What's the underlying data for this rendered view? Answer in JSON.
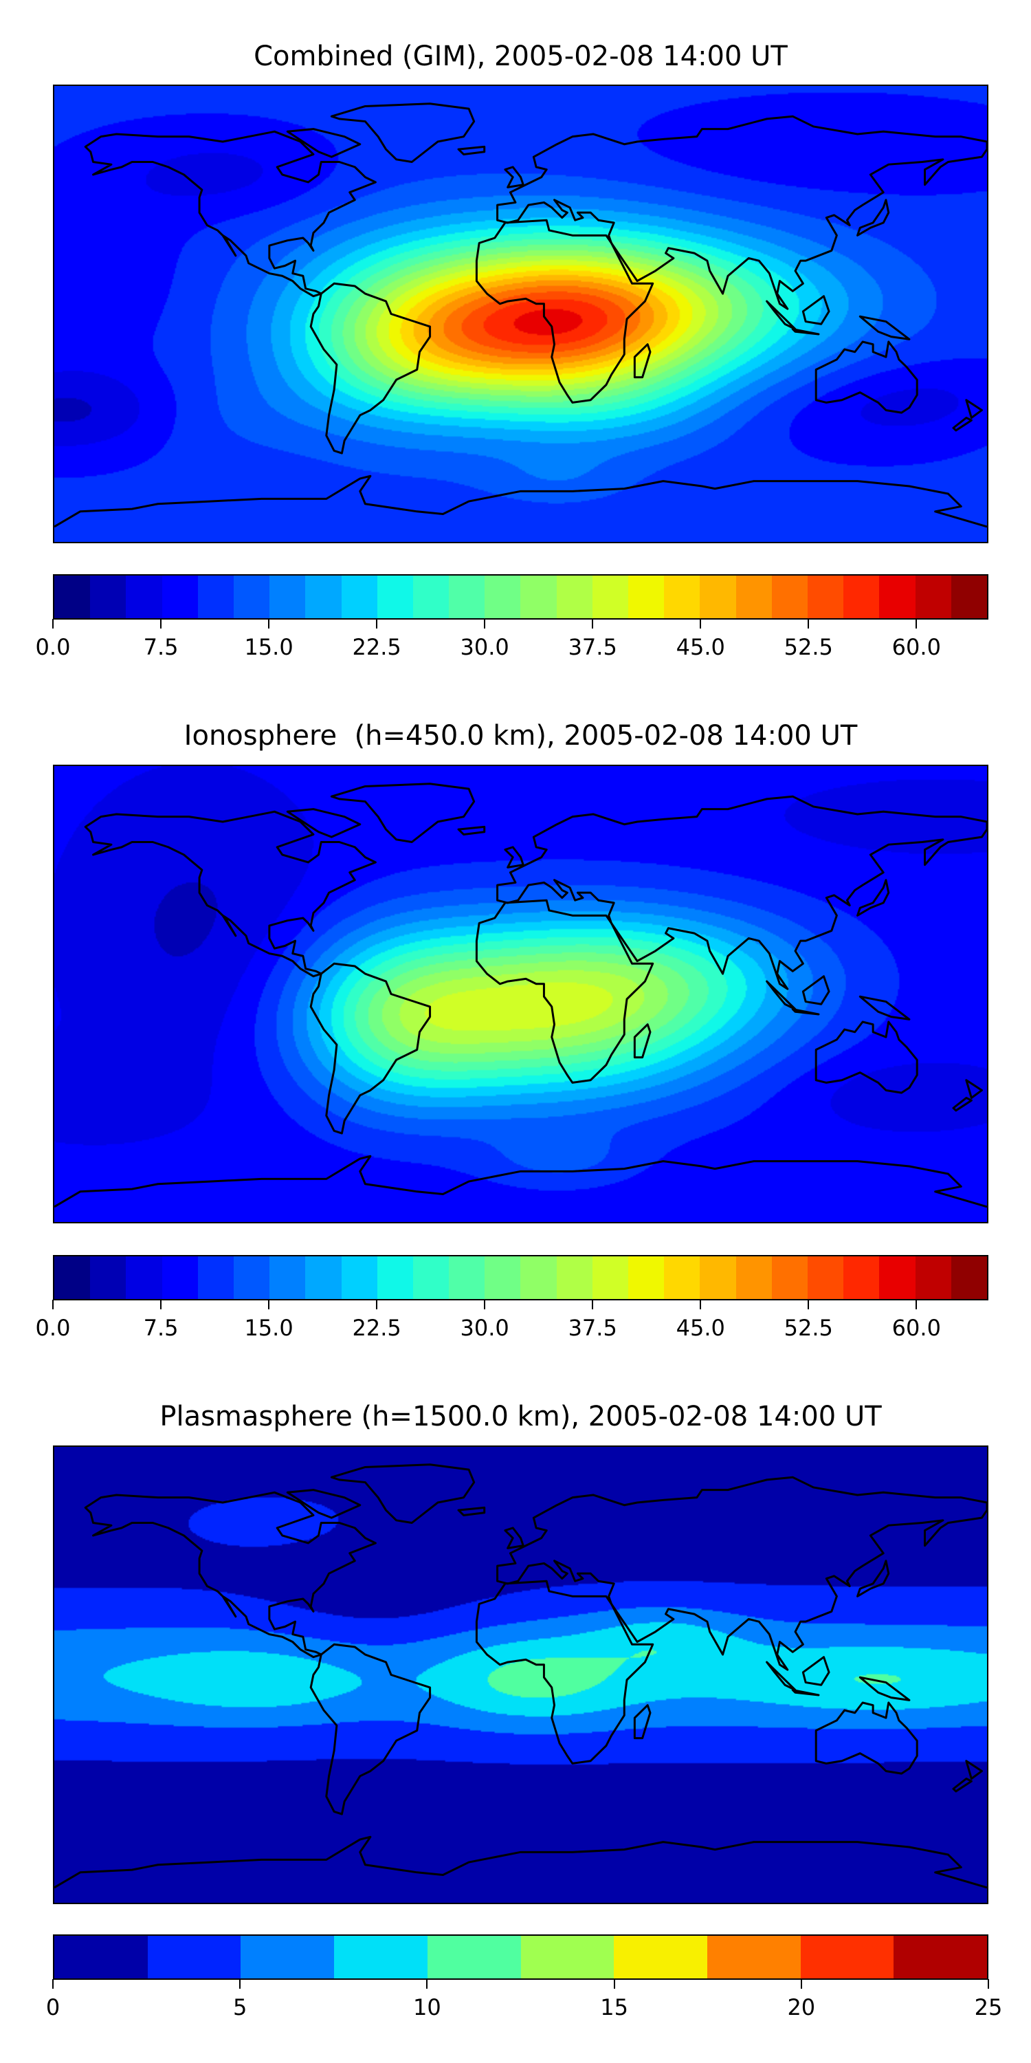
{
  "chart_data": [
    {
      "type": "heatmap",
      "subtype": "filled-contour world map (TEC)",
      "title": "Combined (GIM), 2005-02-08 14:00 UT",
      "colorbar": {
        "range": [
          0,
          65
        ],
        "levels_step": 2.5,
        "tick_labels": [
          "0.0",
          "7.5",
          "15.0",
          "22.5",
          "30.0",
          "37.5",
          "45.0",
          "52.5",
          "60.0"
        ],
        "tick_values": [
          0,
          7.5,
          15,
          22.5,
          30,
          37.5,
          45,
          52.5,
          60
        ],
        "colors": [
          "#000086",
          "#0000b4",
          "#0000e4",
          "#0000ff",
          "#0030ff",
          "#0058ff",
          "#0080ff",
          "#00a8ff",
          "#00d0ff",
          "#10f8e8",
          "#30ffc8",
          "#50ffa8",
          "#70ff86",
          "#90ff66",
          "#b0ff46",
          "#d0ff26",
          "#f0f800",
          "#ffd800",
          "#ffb800",
          "#ff9400",
          "#ff7000",
          "#ff4c00",
          "#ff2800",
          "#e80000",
          "#c00000",
          "#900000"
        ]
      },
      "estimated_peak": {
        "value": 50,
        "lon": 18,
        "lat": -4
      },
      "axes": "none (map extent lon -180..180, lat -90..90)"
    },
    {
      "type": "heatmap",
      "subtype": "filled-contour world map (TEC)",
      "title": "Ionosphere  (h=450.0 km), 2005-02-08 14:00 UT",
      "colorbar": {
        "range": [
          0,
          65
        ],
        "levels_step": 2.5,
        "tick_labels": [
          "0.0",
          "7.5",
          "15.0",
          "22.5",
          "30.0",
          "37.5",
          "45.0",
          "52.5",
          "60.0"
        ],
        "tick_values": [
          0,
          7.5,
          15,
          22.5,
          30,
          37.5,
          45,
          52.5,
          60
        ],
        "colors": [
          "#000086",
          "#0000b4",
          "#0000e4",
          "#0000ff",
          "#0030ff",
          "#0058ff",
          "#0080ff",
          "#00a8ff",
          "#00d0ff",
          "#10f8e8",
          "#30ffc8",
          "#50ffa8",
          "#70ff86",
          "#90ff66",
          "#b0ff46",
          "#d0ff26",
          "#f0f800",
          "#ffd800",
          "#ffb800",
          "#ff9400",
          "#ff7000",
          "#ff4c00",
          "#ff2800",
          "#e80000",
          "#c00000",
          "#900000"
        ]
      },
      "estimated_peak": {
        "value": 38,
        "lon": 15,
        "lat": -5
      }
    },
    {
      "type": "heatmap",
      "subtype": "filled-contour world map (TEC)",
      "title": "Plasmasphere (h=1500.0 km), 2005-02-08 14:00 UT",
      "colorbar": {
        "range": [
          0,
          25
        ],
        "levels_step": 2.5,
        "tick_labels": [
          "0",
          "5",
          "10",
          "15",
          "20",
          "25"
        ],
        "tick_values": [
          0,
          5,
          10,
          15,
          20,
          25
        ],
        "colors": [
          "#0000a8",
          "#0024ff",
          "#0080ff",
          "#00e0f8",
          "#50ffa0",
          "#a0ff50",
          "#f8f000",
          "#ff8000",
          "#ff3000",
          "#b00000"
        ]
      },
      "estimated_peak": {
        "value": 11,
        "lon": 10,
        "lat": -5
      }
    }
  ]
}
